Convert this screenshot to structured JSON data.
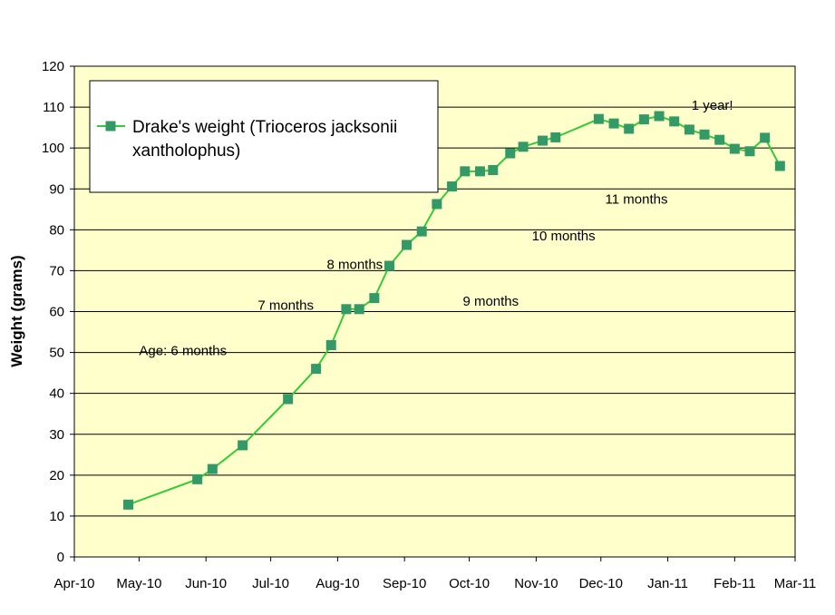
{
  "chart_data": {
    "type": "line",
    "title": "",
    "xlabel": "",
    "ylabel": "Weight (grams)",
    "ylim": [
      0,
      120
    ],
    "yticks": [
      0,
      10,
      20,
      30,
      40,
      50,
      60,
      70,
      80,
      90,
      100,
      110,
      120
    ],
    "xlim": [
      "2010-04-01",
      "2011-03-01"
    ],
    "xticks": [
      {
        "date": "2010-04-01",
        "label": "Apr-10"
      },
      {
        "date": "2010-05-01",
        "label": "May-10"
      },
      {
        "date": "2010-06-01",
        "label": "Jun-10"
      },
      {
        "date": "2010-07-01",
        "label": "Jul-10"
      },
      {
        "date": "2010-08-01",
        "label": "Aug-10"
      },
      {
        "date": "2010-09-01",
        "label": "Sep-10"
      },
      {
        "date": "2010-10-01",
        "label": "Oct-10"
      },
      {
        "date": "2010-11-01",
        "label": "Nov-10"
      },
      {
        "date": "2010-12-01",
        "label": "Dec-10"
      },
      {
        "date": "2011-01-01",
        "label": "Jan-11"
      },
      {
        "date": "2011-02-01",
        "label": "Feb-11"
      },
      {
        "date": "2011-03-01",
        "label": "Mar-11"
      }
    ],
    "grid": true,
    "legend_position": "top-left",
    "plot_background": "#FFFFCC",
    "series": [
      {
        "name": "Drake's weight (Trioceros jacksonii xantholophus)",
        "color": "#33CC33",
        "marker_color": "#339966",
        "marker": "square",
        "points": [
          {
            "x": "2010-04-26",
            "y": 12.8
          },
          {
            "x": "2010-05-28",
            "y": 19.0
          },
          {
            "x": "2010-06-04",
            "y": 21.5
          },
          {
            "x": "2010-06-18",
            "y": 27.3
          },
          {
            "x": "2010-07-09",
            "y": 38.6
          },
          {
            "x": "2010-07-22",
            "y": 46.0
          },
          {
            "x": "2010-07-29",
            "y": 51.8
          },
          {
            "x": "2010-08-05",
            "y": 60.6
          },
          {
            "x": "2010-08-11",
            "y": 60.6
          },
          {
            "x": "2010-08-18",
            "y": 63.3
          },
          {
            "x": "2010-08-25",
            "y": 71.2
          },
          {
            "x": "2010-09-02",
            "y": 76.3
          },
          {
            "x": "2010-09-09",
            "y": 79.6
          },
          {
            "x": "2010-09-16",
            "y": 86.3
          },
          {
            "x": "2010-09-23",
            "y": 90.6
          },
          {
            "x": "2010-09-29",
            "y": 94.3
          },
          {
            "x": "2010-10-06",
            "y": 94.3
          },
          {
            "x": "2010-10-12",
            "y": 94.6
          },
          {
            "x": "2010-10-20",
            "y": 98.7
          },
          {
            "x": "2010-10-26",
            "y": 100.3
          },
          {
            "x": "2010-11-04",
            "y": 101.8
          },
          {
            "x": "2010-11-10",
            "y": 102.6
          },
          {
            "x": "2010-11-30",
            "y": 107.1
          },
          {
            "x": "2010-12-07",
            "y": 106.0
          },
          {
            "x": "2010-12-14",
            "y": 104.7
          },
          {
            "x": "2010-12-21",
            "y": 107.0
          },
          {
            "x": "2010-12-28",
            "y": 107.8
          },
          {
            "x": "2011-01-04",
            "y": 106.5
          },
          {
            "x": "2011-01-11",
            "y": 104.5
          },
          {
            "x": "2011-01-18",
            "y": 103.3
          },
          {
            "x": "2011-01-25",
            "y": 102.0
          },
          {
            "x": "2011-02-01",
            "y": 99.8
          },
          {
            "x": "2011-02-08",
            "y": 99.2
          },
          {
            "x": "2011-02-15",
            "y": 102.5
          },
          {
            "x": "2011-02-22",
            "y": 95.6
          }
        ]
      }
    ],
    "annotations": [
      {
        "text": "Age: 6 months",
        "x": "2010-05-01",
        "y": 50.5
      },
      {
        "text": "7 months",
        "x": "2010-06-25",
        "y": 61.5
      },
      {
        "text": "8 months",
        "x": "2010-07-27",
        "y": 71.5
      },
      {
        "text": "9 months",
        "x": "2010-09-28",
        "y": 62.5
      },
      {
        "text": "10 months",
        "x": "2010-10-30",
        "y": 78.5
      },
      {
        "text": "11 months",
        "x": "2010-12-03",
        "y": 87.5
      },
      {
        "text": "1 year!",
        "x": "2011-01-12",
        "y": 110.5
      }
    ]
  }
}
